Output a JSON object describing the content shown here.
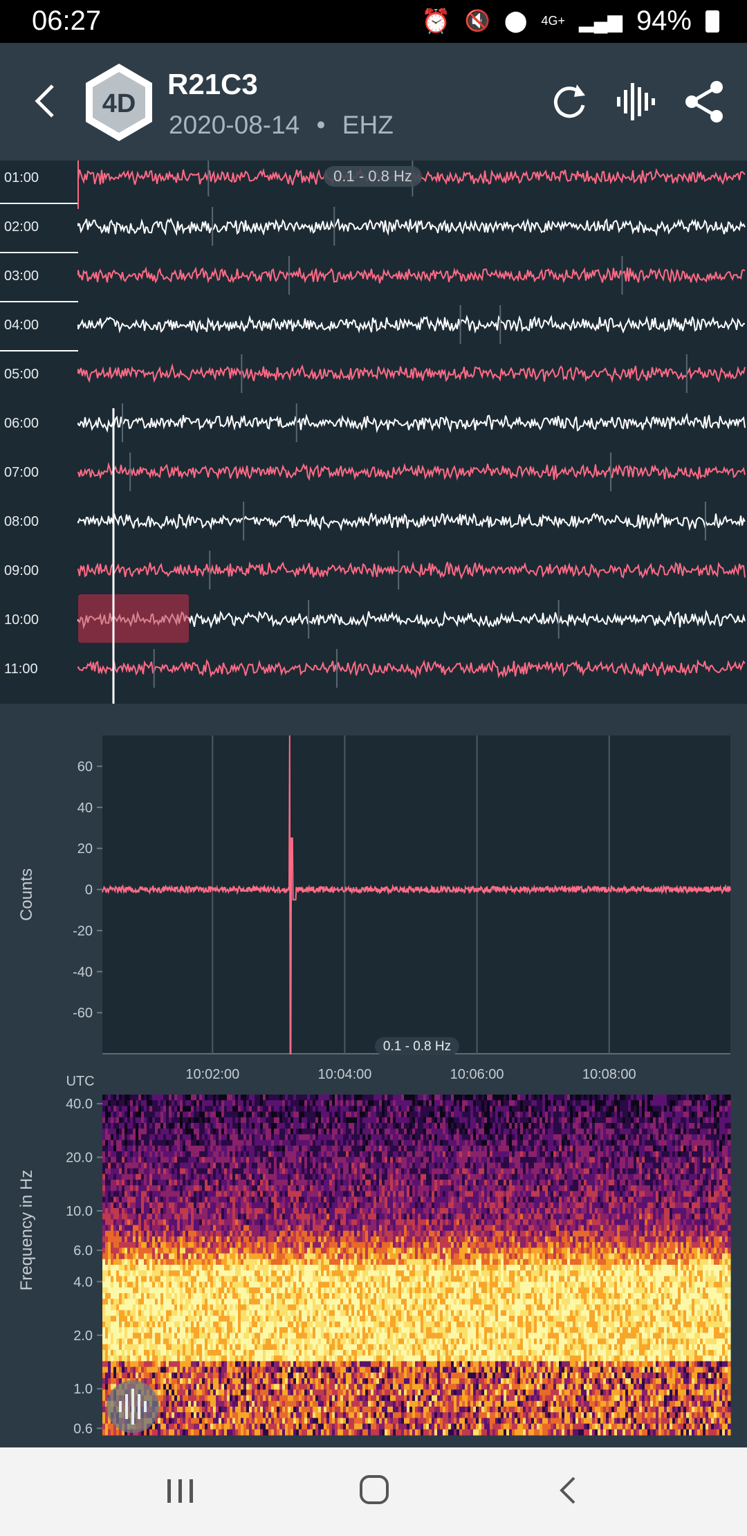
{
  "status_bar": {
    "time": "06:27",
    "battery": "94%",
    "network": "4G+"
  },
  "header": {
    "badge": "4D",
    "title": "R21C3",
    "date": "2020-08-14",
    "separator": "•",
    "channel": "EHZ"
  },
  "helicorder": {
    "hours": [
      "01:00",
      "02:00",
      "03:00",
      "04:00",
      "05:00",
      "06:00",
      "07:00",
      "08:00",
      "09:00",
      "10:00",
      "11:00"
    ],
    "filter_label": "0.1 - 0.8 Hz",
    "trace_colors": [
      "#ff6b86",
      "#ffffff"
    ]
  },
  "waveform": {
    "ylabel": "Counts",
    "xlabel": "UTC",
    "filter_label": "0.1 - 0.8 Hz",
    "yticks": [
      "60",
      "40",
      "20",
      "0",
      "-20",
      "-40",
      "-60"
    ],
    "xticks": [
      "10:02:00",
      "10:04:00",
      "10:06:00",
      "10:08:00"
    ]
  },
  "spectrogram": {
    "ylabel": "Frequency in Hz",
    "yticks": [
      "40.0",
      "20.0",
      "10.0",
      "6.0",
      "4.0",
      "2.0",
      "1.0",
      "0.6"
    ]
  },
  "chart_data": [
    {
      "type": "line",
      "title": "",
      "xlabel": "UTC",
      "ylabel": "Counts",
      "x_ticks": [
        "10:02:00",
        "10:04:00",
        "10:06:00",
        "10:08:00"
      ],
      "ylim": [
        -80,
        75
      ],
      "series": [
        {
          "values_note_x": [
            "10:00:20",
            "10:03:10",
            "10:03:12",
            "10:03:15",
            "10:03:20",
            "10:03:30",
            "10:09:50"
          ],
          "values": [
            0,
            0,
            75,
            -80,
            25,
            0,
            0
          ]
        }
      ]
    },
    {
      "type": "heatmap",
      "ylabel": "Frequency in Hz",
      "y_ticks": [
        "40.0",
        "20.0",
        "10.0",
        "6.0",
        "4.0",
        "2.0",
        "1.0",
        "0.6"
      ]
    }
  ]
}
